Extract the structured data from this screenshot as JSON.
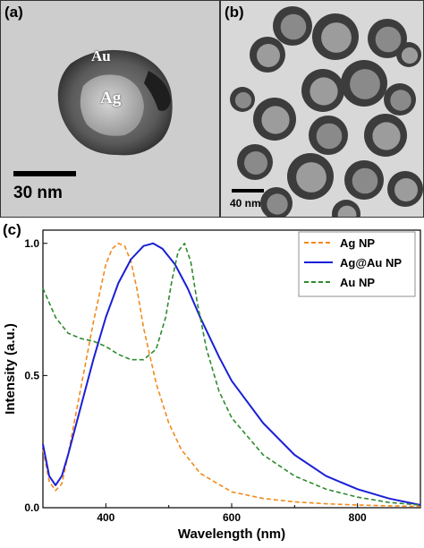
{
  "panel_a": {
    "label": "(a)",
    "labels": {
      "shell": "Au",
      "core": "Ag"
    },
    "scale_bar": "30 nm"
  },
  "panel_b": {
    "label": "(b)",
    "scale_bar": "40 nm"
  },
  "panel_c": {
    "label": "(c)"
  },
  "chart_data": {
    "type": "line",
    "xlabel": "Wavelength (nm)",
    "ylabel": "Intensity (a.u.)",
    "xlim": [
      300,
      900
    ],
    "ylim": [
      0,
      1.05
    ],
    "xticks": [
      400,
      600,
      800
    ],
    "yticks": [
      0.0,
      0.5,
      1.0
    ],
    "ytick_labels": [
      "0.0",
      "0.5",
      "1.0"
    ],
    "grid": false,
    "legend_position": "top-right",
    "series": [
      {
        "name": "Ag NP",
        "color": "#f28a1c",
        "style": "dashed",
        "x": [
          300,
          310,
          320,
          330,
          340,
          360,
          380,
          400,
          410,
          420,
          430,
          440,
          450,
          460,
          480,
          500,
          520,
          550,
          600,
          650,
          700,
          750,
          800,
          850,
          900
        ],
        "y": [
          0.22,
          0.1,
          0.065,
          0.09,
          0.2,
          0.45,
          0.7,
          0.92,
          0.98,
          1.0,
          0.99,
          0.93,
          0.82,
          0.68,
          0.47,
          0.32,
          0.22,
          0.13,
          0.06,
          0.035,
          0.022,
          0.015,
          0.01,
          0.007,
          0.005
        ]
      },
      {
        "name": "Ag@Au NP",
        "color": "#1a1fd6",
        "style": "solid",
        "x": [
          300,
          310,
          320,
          330,
          340,
          360,
          380,
          400,
          420,
          440,
          460,
          475,
          490,
          510,
          530,
          550,
          580,
          600,
          650,
          700,
          750,
          800,
          850,
          900
        ],
        "y": [
          0.24,
          0.12,
          0.085,
          0.12,
          0.2,
          0.38,
          0.56,
          0.72,
          0.85,
          0.94,
          0.99,
          1.0,
          0.98,
          0.92,
          0.83,
          0.72,
          0.57,
          0.48,
          0.32,
          0.2,
          0.12,
          0.07,
          0.035,
          0.01
        ]
      },
      {
        "name": "Au NP",
        "color": "#2e8b2e",
        "style": "dashed",
        "x": [
          300,
          320,
          340,
          360,
          380,
          400,
          420,
          440,
          460,
          480,
          495,
          505,
          515,
          525,
          535,
          545,
          560,
          580,
          600,
          650,
          700,
          750,
          800,
          850,
          900
        ],
        "y": [
          0.83,
          0.72,
          0.66,
          0.64,
          0.63,
          0.61,
          0.58,
          0.56,
          0.56,
          0.6,
          0.72,
          0.86,
          0.97,
          1.0,
          0.93,
          0.78,
          0.6,
          0.44,
          0.34,
          0.2,
          0.12,
          0.07,
          0.04,
          0.02,
          0.01
        ]
      }
    ]
  }
}
